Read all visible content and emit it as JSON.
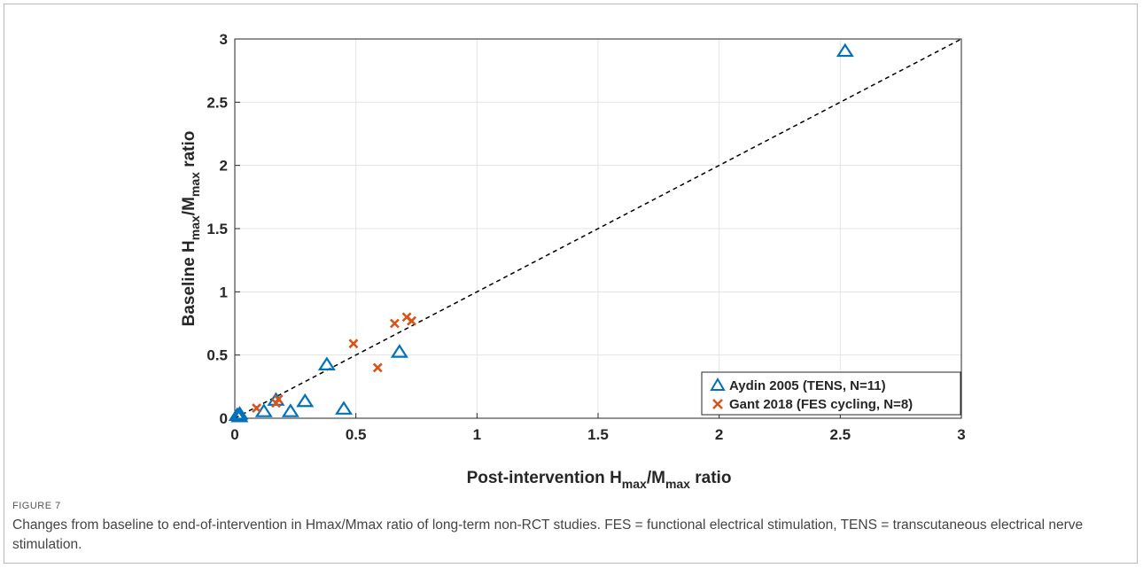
{
  "figure": {
    "label": "FIGURE 7",
    "caption": "Changes from baseline to end-of-intervention in Hmax/Mmax ratio of long-term non-RCT studies. FES = functional electrical stimulation, TENS = transcutaneous electrical nerve stimulation."
  },
  "chart_data": {
    "type": "scatter",
    "xlabel": {
      "main": "Post-intervention H",
      "sub1": "max",
      "mid": "/M",
      "sub2": "max",
      "tail": " ratio"
    },
    "ylabel": {
      "main": "Baseline H",
      "sub1": "max",
      "mid": "/M",
      "sub2": "max",
      "tail": " ratio"
    },
    "xlim": [
      0,
      3
    ],
    "ylim": [
      0,
      3
    ],
    "x_ticks": [
      0,
      0.5,
      1,
      1.5,
      2,
      2.5,
      3
    ],
    "y_ticks": [
      0,
      0.5,
      1,
      1.5,
      2,
      2.5,
      3
    ],
    "x_tick_labels": [
      "0",
      "0.5",
      "1",
      "1.5",
      "2",
      "2.5",
      "3"
    ],
    "y_tick_labels": [
      "0",
      "0.5",
      "1",
      "1.5",
      "2",
      "2.5",
      "3"
    ],
    "grid": true,
    "legend_position": "bottom-right",
    "identity_line": {
      "from": [
        0,
        0
      ],
      "to": [
        3,
        3
      ],
      "style": "dashed",
      "color": "#000000"
    },
    "series": [
      {
        "name": "Aydin 2005 (TENS, N=11)",
        "marker": "triangle",
        "color": "#0072BD",
        "points": [
          {
            "x": 0.01,
            "y": 0.02
          },
          {
            "x": 0.02,
            "y": 0.03
          },
          {
            "x": 0.12,
            "y": 0.05
          },
          {
            "x": 0.17,
            "y": 0.14
          },
          {
            "x": 0.23,
            "y": 0.05
          },
          {
            "x": 0.29,
            "y": 0.13
          },
          {
            "x": 0.38,
            "y": 0.42
          },
          {
            "x": 0.45,
            "y": 0.07
          },
          {
            "x": 0.68,
            "y": 0.52
          },
          {
            "x": 2.52,
            "y": 2.9
          },
          {
            "x": 0.02,
            "y": 0.01
          }
        ]
      },
      {
        "name": "Gant 2018 (FES cycling, N=8)",
        "marker": "x",
        "color": "#D95319",
        "points": [
          {
            "x": 0.09,
            "y": 0.08
          },
          {
            "x": 0.17,
            "y": 0.12
          },
          {
            "x": 0.49,
            "y": 0.59
          },
          {
            "x": 0.59,
            "y": 0.4
          },
          {
            "x": 0.66,
            "y": 0.75
          },
          {
            "x": 0.71,
            "y": 0.8
          },
          {
            "x": 0.73,
            "y": 0.77
          },
          {
            "x": 0.18,
            "y": 0.15
          }
        ]
      }
    ]
  }
}
